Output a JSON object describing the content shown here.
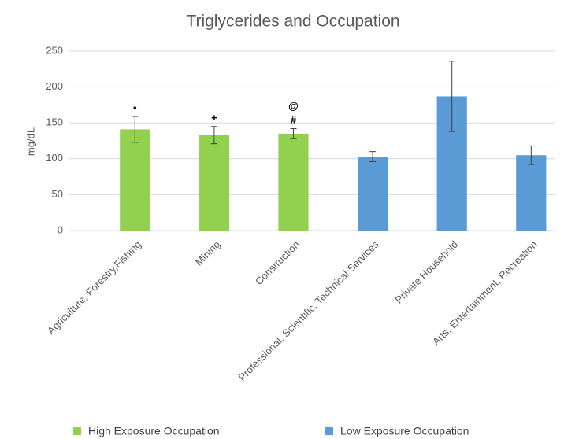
{
  "chart_data": {
    "type": "bar",
    "title": "Triglycerides and Occupation",
    "y_label": "mg/dL",
    "categories": [
      "Agriculture, Forestry,Fishing",
      "Mining",
      "Construction",
      "Professional, Scientific, Technical Services",
      "Private Household",
      "Arts, Entertainment, Recreation"
    ],
    "series": [
      {
        "name": "High Exposure Occupation",
        "color": "#92d050",
        "values": [
          141,
          133,
          135,
          null,
          null,
          null
        ],
        "errors": [
          18,
          12,
          7,
          null,
          null,
          null
        ]
      },
      {
        "name": "Low Exposure Occupation",
        "color": "#5b9bd5",
        "values": [
          null,
          null,
          null,
          103,
          187,
          105
        ],
        "errors": [
          null,
          null,
          null,
          7,
          49,
          13
        ]
      }
    ],
    "bar_markers": [
      [
        "•"
      ],
      [
        "+"
      ],
      [
        "#",
        "@"
      ],
      [],
      [],
      []
    ],
    "ylim": [
      0,
      250
    ],
    "yticks": [
      0,
      50,
      100,
      150,
      200,
      250
    ],
    "grid": true
  }
}
